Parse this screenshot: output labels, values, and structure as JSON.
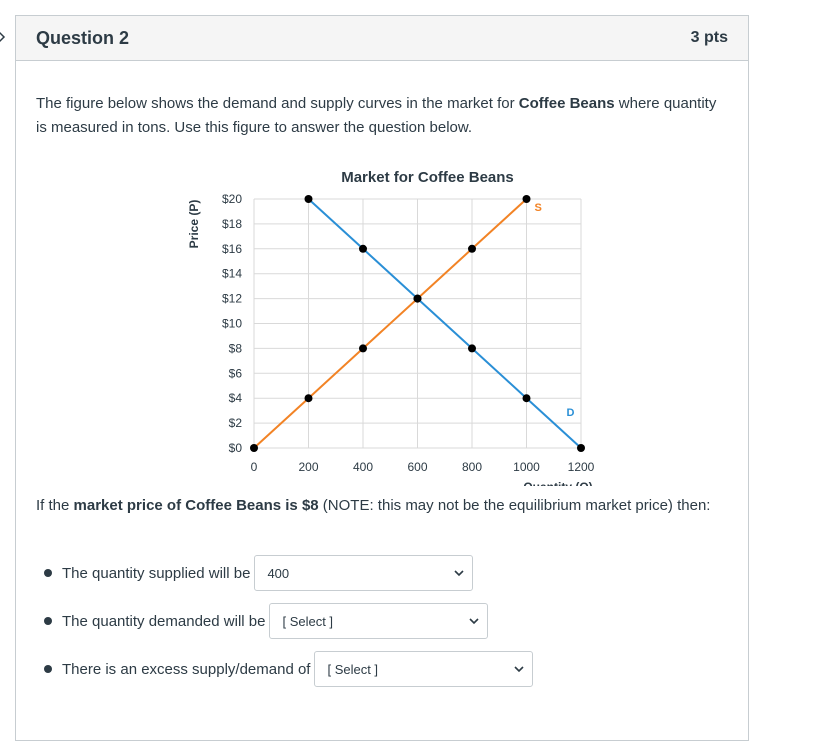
{
  "question": {
    "title": "Question 2",
    "points": "3 pts"
  },
  "intro": {
    "part1": "The figure below shows the demand and supply curves in the market for ",
    "bold": "Coffee Beans",
    "part2": " where quantity is measured in tons. Use this figure to answer the question below."
  },
  "prompt": {
    "part1": "If the ",
    "bold1": "market price of Coffee Beans is $8",
    "part2": " (NOTE: this may not be the equilibrium market price) then:"
  },
  "answers": [
    {
      "label": "The quantity supplied will be",
      "value": "400"
    },
    {
      "label": "The quantity demanded will be",
      "value": "[ Select ]"
    },
    {
      "label": "There is an excess supply/demand of",
      "value": "[ Select ]"
    }
  ],
  "colors": {
    "supply": "#f28325",
    "demand": "#2a8fd6",
    "point": "#000000",
    "label_supply": "#f28325",
    "label_demand": "#2a8fd6"
  },
  "chart_data": {
    "type": "line",
    "title": "Market for Coffee Beans",
    "xlabel": "Quantity (Q)",
    "ylabel": "Price (P)",
    "xlim": [
      0,
      1200
    ],
    "ylim": [
      0,
      20
    ],
    "x_ticks": [
      0,
      200,
      400,
      600,
      800,
      1000,
      1200
    ],
    "x_tick_labels": [
      "0",
      "200",
      "400",
      "600",
      "800",
      "1000",
      "1200"
    ],
    "y_ticks": [
      0,
      2,
      4,
      6,
      8,
      10,
      12,
      14,
      16,
      18,
      20
    ],
    "y_tick_labels": [
      "$0",
      "$2",
      "$4",
      "$6",
      "$8",
      "$10",
      "$12",
      "$14",
      "$16",
      "$18",
      "$20"
    ],
    "grid": true,
    "series": [
      {
        "name": "S",
        "color": "#f28325",
        "points": [
          [
            0,
            0
          ],
          [
            200,
            4
          ],
          [
            400,
            8
          ],
          [
            600,
            12
          ],
          [
            800,
            16
          ],
          [
            1000,
            20
          ]
        ]
      },
      {
        "name": "D",
        "color": "#2a8fd6",
        "points": [
          [
            200,
            20
          ],
          [
            400,
            16
          ],
          [
            600,
            12
          ],
          [
            800,
            8
          ],
          [
            1000,
            4
          ],
          [
            1200,
            0
          ]
        ]
      }
    ]
  }
}
